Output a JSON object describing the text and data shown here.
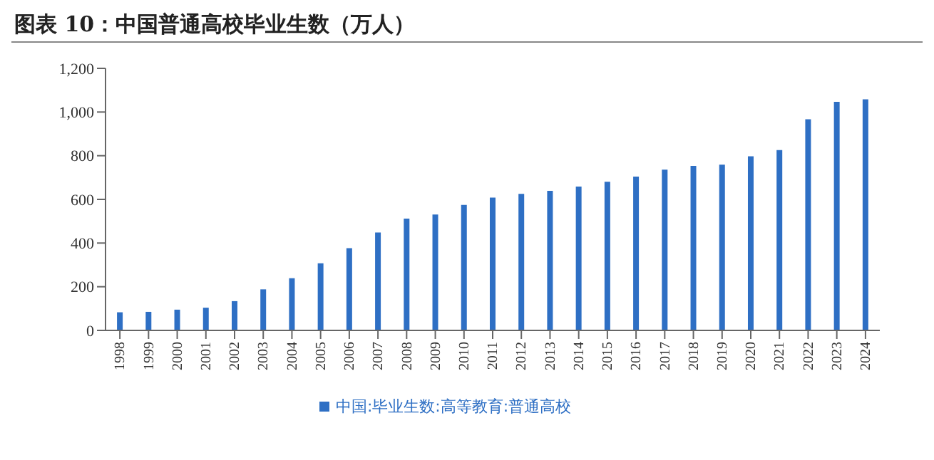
{
  "chart_data": {
    "type": "bar",
    "title": "图表 10：中国普通高校毕业生数（万人）",
    "categories": [
      "1998",
      "1999",
      "2000",
      "2001",
      "2002",
      "2003",
      "2004",
      "2005",
      "2006",
      "2007",
      "2008",
      "2009",
      "2010",
      "2011",
      "2012",
      "2013",
      "2014",
      "2015",
      "2016",
      "2017",
      "2018",
      "2019",
      "2020",
      "2021",
      "2022",
      "2023",
      "2024"
    ],
    "series": [
      {
        "name": "中国:毕业生数:高等教育:普通高校",
        "color": "#2e6fc4",
        "values": [
          83,
          85,
          95,
          104,
          134,
          188,
          239,
          307,
          377,
          448,
          512,
          531,
          575,
          608,
          625,
          639,
          659,
          681,
          704,
          736,
          753,
          759,
          797,
          826,
          967,
          1047,
          1058
        ]
      }
    ],
    "ylim": [
      0,
      1200
    ],
    "yticks": [
      0,
      200,
      400,
      600,
      800,
      {
        "value": 1000,
        "label": "1,000"
      },
      {
        "value": 1200,
        "label": "1,200"
      }
    ],
    "grid": false,
    "legend": "bottom"
  }
}
